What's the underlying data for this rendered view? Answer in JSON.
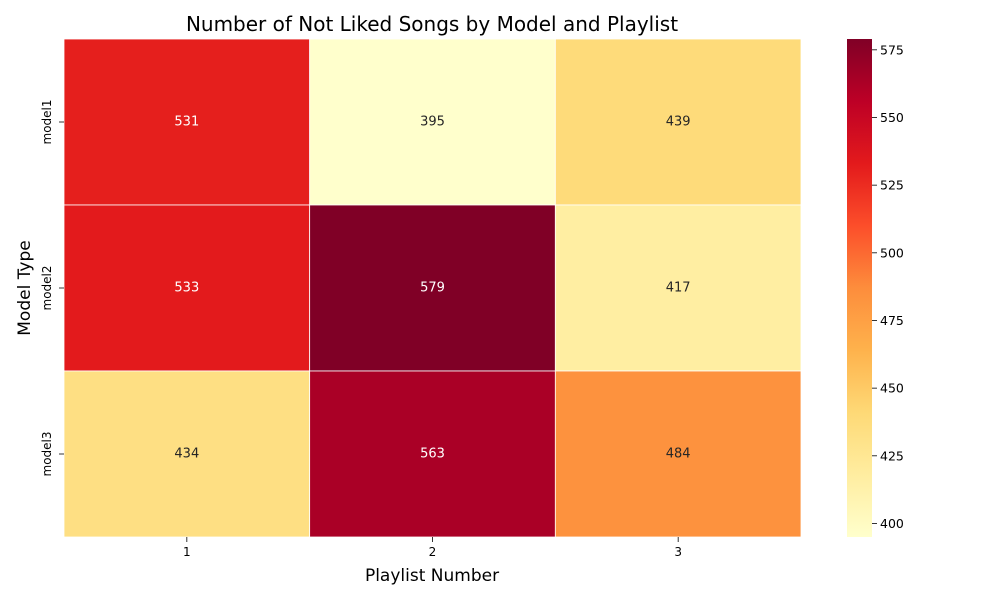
{
  "chart_data": {
    "type": "heatmap",
    "title": "Number of Not Liked Songs by Model and Playlist",
    "xlabel": "Playlist Number",
    "ylabel": "Model Type",
    "x_categories": [
      "1",
      "2",
      "3"
    ],
    "y_categories": [
      "model1",
      "model2",
      "model3"
    ],
    "values": [
      [
        531,
        395,
        439
      ],
      [
        533,
        579,
        417
      ],
      [
        434,
        563,
        484
      ]
    ],
    "colormap": "YlOrRd",
    "colorbar": {
      "range": [
        395,
        579
      ],
      "ticks": [
        400,
        425,
        450,
        475,
        500,
        525,
        550,
        575
      ],
      "tick_labels": [
        "400",
        "425",
        "450",
        "475",
        "500",
        "525",
        "550",
        "575"
      ]
    },
    "annotations": true,
    "grid": false
  }
}
